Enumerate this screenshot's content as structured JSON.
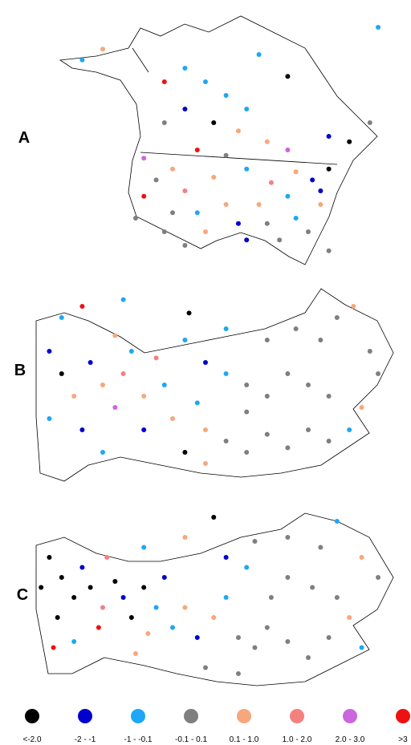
{
  "panels": [
    {
      "label": "A",
      "stations": [
        [
          40,
          30,
          7
        ],
        [
          45,
          25,
          2
        ],
        [
          40,
          45,
          3
        ],
        [
          50,
          30,
          2
        ],
        [
          55,
          35,
          2
        ],
        [
          45,
          40,
          1
        ],
        [
          60,
          40,
          2
        ],
        [
          52,
          45,
          0
        ],
        [
          58,
          48,
          4
        ],
        [
          65,
          52,
          4
        ],
        [
          48,
          55,
          7
        ],
        [
          55,
          57,
          3
        ],
        [
          70,
          55,
          6
        ],
        [
          80,
          50,
          1
        ],
        [
          85,
          52,
          0
        ],
        [
          42,
          62,
          4
        ],
        [
          38,
          66,
          3
        ],
        [
          45,
          70,
          5
        ],
        [
          52,
          65,
          4
        ],
        [
          60,
          62,
          2
        ],
        [
          66,
          67,
          5
        ],
        [
          72,
          63,
          4
        ],
        [
          76,
          66,
          1
        ],
        [
          80,
          62,
          0
        ],
        [
          78,
          70,
          1
        ],
        [
          70,
          72,
          2
        ],
        [
          63,
          75,
          4
        ],
        [
          55,
          75,
          4
        ],
        [
          48,
          78,
          2
        ],
        [
          42,
          78,
          3
        ],
        [
          35,
          72,
          7
        ],
        [
          33,
          80,
          3
        ],
        [
          40,
          85,
          3
        ],
        [
          50,
          85,
          4
        ],
        [
          58,
          82,
          1
        ],
        [
          65,
          82,
          3
        ],
        [
          72,
          80,
          2
        ],
        [
          78,
          75,
          4
        ],
        [
          75,
          85,
          3
        ],
        [
          68,
          88,
          3
        ],
        [
          60,
          88,
          1
        ],
        [
          45,
          90,
          3
        ],
        [
          80,
          92,
          3
        ],
        [
          90,
          45,
          3
        ],
        [
          20,
          22,
          2
        ],
        [
          25,
          18,
          4
        ],
        [
          92,
          10,
          2
        ],
        [
          63,
          20,
          2
        ],
        [
          70,
          28,
          0
        ],
        [
          35,
          58,
          6
        ]
      ]
    },
    {
      "label": "B",
      "stations": [
        [
          15,
          20,
          2
        ],
        [
          20,
          15,
          7
        ],
        [
          30,
          12,
          2
        ],
        [
          12,
          35,
          1
        ],
        [
          15,
          45,
          0
        ],
        [
          18,
          55,
          4
        ],
        [
          12,
          65,
          2
        ],
        [
          20,
          70,
          1
        ],
        [
          25,
          50,
          4
        ],
        [
          30,
          45,
          5
        ],
        [
          28,
          60,
          6
        ],
        [
          35,
          55,
          4
        ],
        [
          40,
          50,
          2
        ],
        [
          35,
          70,
          1
        ],
        [
          42,
          65,
          4
        ],
        [
          48,
          58,
          2
        ],
        [
          50,
          70,
          4
        ],
        [
          45,
          80,
          0
        ],
        [
          55,
          75,
          3
        ],
        [
          60,
          80,
          3
        ],
        [
          65,
          72,
          3
        ],
        [
          70,
          78,
          3
        ],
        [
          75,
          70,
          3
        ],
        [
          80,
          75,
          3
        ],
        [
          85,
          70,
          2
        ],
        [
          88,
          60,
          4
        ],
        [
          80,
          55,
          3
        ],
        [
          75,
          50,
          3
        ],
        [
          70,
          45,
          3
        ],
        [
          65,
          55,
          3
        ],
        [
          60,
          50,
          3
        ],
        [
          55,
          45,
          2
        ],
        [
          50,
          40,
          1
        ],
        [
          45,
          30,
          2
        ],
        [
          55,
          25,
          2
        ],
        [
          65,
          30,
          3
        ],
        [
          72,
          25,
          3
        ],
        [
          78,
          30,
          3
        ],
        [
          82,
          20,
          3
        ],
        [
          86,
          15,
          4
        ],
        [
          90,
          35,
          3
        ],
        [
          92,
          45,
          3
        ],
        [
          60,
          62,
          3
        ],
        [
          50,
          85,
          4
        ],
        [
          25,
          80,
          2
        ],
        [
          32,
          35,
          2
        ],
        [
          46,
          18,
          0
        ],
        [
          22,
          40,
          1
        ],
        [
          38,
          38,
          5
        ],
        [
          28,
          28,
          4
        ]
      ]
    },
    {
      "label": "C",
      "stations": [
        [
          12,
          30,
          0
        ],
        [
          15,
          40,
          0
        ],
        [
          18,
          50,
          0
        ],
        [
          14,
          60,
          0
        ],
        [
          20,
          35,
          1
        ],
        [
          22,
          45,
          0
        ],
        [
          25,
          55,
          5
        ],
        [
          28,
          42,
          0
        ],
        [
          30,
          50,
          1
        ],
        [
          24,
          65,
          7
        ],
        [
          18,
          72,
          2
        ],
        [
          13,
          75,
          7
        ],
        [
          32,
          60,
          0
        ],
        [
          35,
          45,
          0
        ],
        [
          38,
          55,
          2
        ],
        [
          40,
          40,
          1
        ],
        [
          36,
          68,
          4
        ],
        [
          42,
          65,
          2
        ],
        [
          45,
          55,
          4
        ],
        [
          48,
          70,
          1
        ],
        [
          52,
          60,
          4
        ],
        [
          55,
          50,
          2
        ],
        [
          58,
          70,
          3
        ],
        [
          62,
          75,
          3
        ],
        [
          65,
          65,
          3
        ],
        [
          70,
          72,
          3
        ],
        [
          75,
          80,
          3
        ],
        [
          80,
          70,
          3
        ],
        [
          85,
          60,
          4
        ],
        [
          88,
          75,
          2
        ],
        [
          82,
          50,
          3
        ],
        [
          76,
          45,
          3
        ],
        [
          70,
          40,
          3
        ],
        [
          66,
          50,
          3
        ],
        [
          60,
          35,
          2
        ],
        [
          55,
          30,
          1
        ],
        [
          62,
          22,
          3
        ],
        [
          70,
          20,
          3
        ],
        [
          78,
          25,
          3
        ],
        [
          82,
          12,
          2
        ],
        [
          88,
          30,
          4
        ],
        [
          92,
          40,
          3
        ],
        [
          50,
          85,
          3
        ],
        [
          58,
          88,
          3
        ],
        [
          45,
          20,
          4
        ],
        [
          35,
          25,
          2
        ],
        [
          52,
          10,
          0
        ],
        [
          26,
          30,
          5
        ],
        [
          10,
          45,
          0
        ],
        [
          33,
          78,
          4
        ]
      ]
    }
  ],
  "legend": [
    {
      "label": "<-2.0",
      "color": "#000000"
    },
    {
      "label": "-2 - -1",
      "color": "#0000cc"
    },
    {
      "label": "-1 - -0.1",
      "color": "#1ea7f5"
    },
    {
      "label": "-0.1 - 0.1",
      "color": "#7f7f7f"
    },
    {
      "label": "0.1 - 1.0",
      "color": "#f7a77c"
    },
    {
      "label": "1.0 - 2.0",
      "color": "#f48080"
    },
    {
      "label": "2.0 - 3.0",
      "color": "#cc66dd"
    },
    {
      "label": ">3",
      "color": "#ee1111"
    }
  ]
}
